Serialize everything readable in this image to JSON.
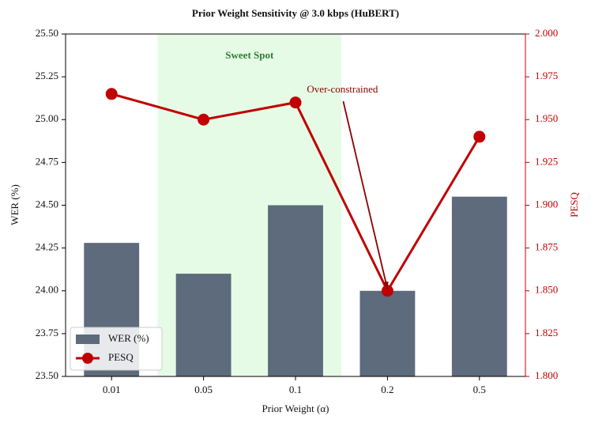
{
  "chart_data": {
    "type": "bar",
    "title": "Prior Weight Sensitivity @ 3.0 kbps (HuBERT)",
    "x_label": "Prior Weight (α)",
    "y_label": "WER (%)",
    "y2_label": "PESQ",
    "categories": [
      "0.01",
      "0.05",
      "0.1",
      "0.2",
      "0.5"
    ],
    "series": [
      {
        "name": "WER (%)",
        "type": "bar",
        "color": "#5d6b7d",
        "values": [
          24.28,
          24.1,
          24.5,
          24.0,
          24.55
        ]
      },
      {
        "name": "PESQ",
        "type": "line",
        "axis": "y2",
        "color": "#c00000",
        "values": [
          1.965,
          1.95,
          1.96,
          1.85,
          1.94
        ]
      }
    ],
    "ylim": [
      23.5,
      25.5
    ],
    "yticks": [
      {
        "value": 23.5,
        "label": "23.50"
      },
      23.75,
      {
        "value": 24,
        "label": "24.00"
      },
      24.25,
      {
        "value": 24.5,
        "label": "24.50"
      },
      24.75,
      {
        "value": 25,
        "label": "25.00"
      },
      25.25,
      {
        "value": 25.5,
        "label": "25.50"
      }
    ],
    "y2lim": [
      1.8,
      2.0
    ],
    "y2ticks": [
      {
        "value": 1.8,
        "label": "1.800"
      },
      1.825,
      {
        "value": 1.85,
        "label": "1.850"
      },
      1.875,
      {
        "value": 1.9,
        "label": "1.900"
      },
      1.925,
      {
        "value": 1.95,
        "label": "1.950"
      },
      1.975,
      {
        "value": 2,
        "label": "2.000"
      }
    ],
    "highlight": {
      "text": "Sweet Spot",
      "categories": [
        "0.05",
        "0.1"
      ],
      "color": "#e6fbe6"
    },
    "annotation": {
      "text": "Over-constrained",
      "category": "0.2",
      "color": "#8b0000"
    },
    "legend": "lower left"
  }
}
